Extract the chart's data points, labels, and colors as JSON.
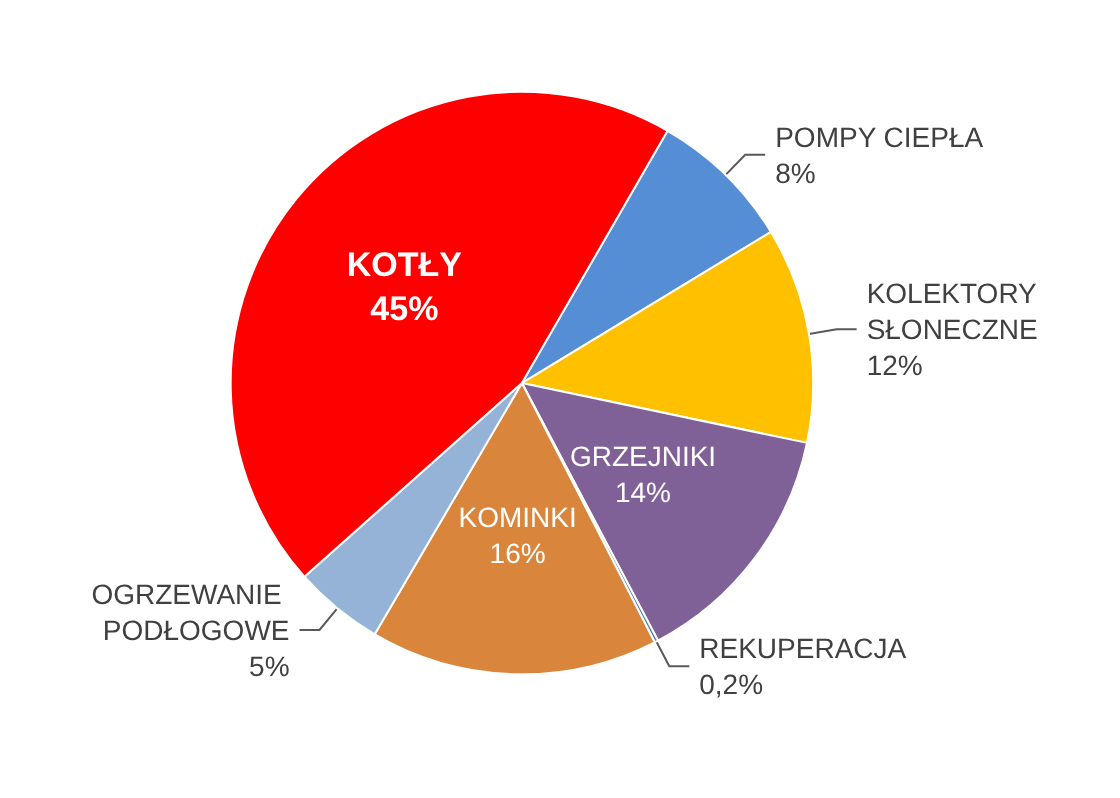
{
  "chart_data": {
    "type": "pie",
    "categories": [
      "POMPY CIEPŁA",
      "KOLEKTORY SŁONECZNE",
      "GRZEJNIKI",
      "REKUPERACJA",
      "KOMINKI",
      "OGRZEWANIE PODŁOGOWE",
      "KOTŁY"
    ],
    "values": [
      8,
      12,
      14,
      0.2,
      16,
      5,
      45
    ],
    "value_labels": [
      "8%",
      "12%",
      "14%",
      "0,2%",
      "16%",
      "5%",
      "45%"
    ],
    "colors": [
      "#558ed5",
      "#ffc000",
      "#7f6198",
      "#4f81bd",
      "#d9853b",
      "#95b3d7",
      "#ff0000"
    ],
    "legend": false
  }
}
